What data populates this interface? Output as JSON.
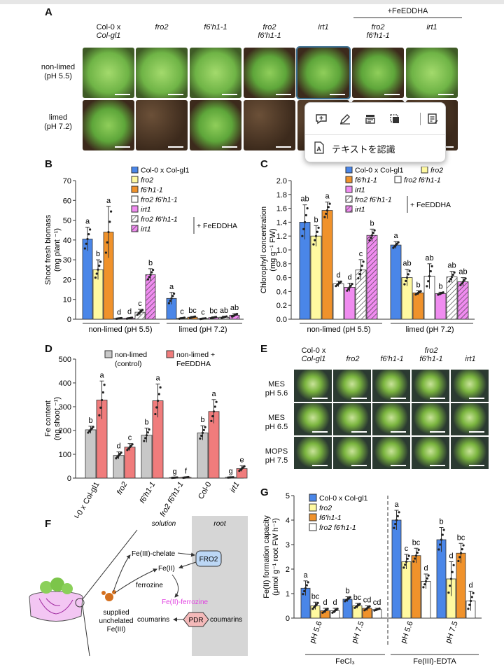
{
  "top_bar_color": "#e6e6e6",
  "panelA": {
    "letter": "A",
    "fe_header": "+FeEDDHA",
    "columns": [
      {
        "l1": "Col-0 x",
        "l2": "Col-gl1"
      },
      {
        "l1": "",
        "l2": "fro2"
      },
      {
        "l1": "",
        "l2": "f6′h1-1"
      },
      {
        "l1": "fro2",
        "l2": "f6′h1-1"
      },
      {
        "l1": "",
        "l2": "irt1"
      },
      {
        "l1": "fro2",
        "l2": "f6′h1-1"
      },
      {
        "l1": "",
        "l2": "irt1"
      }
    ],
    "rows": [
      {
        "l1": "non-limed",
        "l2": "(pH 5.5)"
      },
      {
        "l1": "limed",
        "l2": "(pH 7.2)"
      }
    ]
  },
  "context_menu": {
    "tools": [
      "add-comment-icon",
      "pen-icon",
      "highlighter-icon",
      "crop-icon",
      "text-note-icon"
    ],
    "recognize_text_label": "テキストを認識"
  },
  "panelB": {
    "letter": "B",
    "ylabel_1": "Shoot fresh biomass",
    "ylabel_2": "(mg plant ⁻¹)",
    "legend": [
      "Col-0 x Col-gl1",
      "fro2",
      "f6′h1-1",
      "fro2 f6′h1-1",
      "irt1",
      "fro2 f6′h1-1",
      "irt1"
    ],
    "fe_label": "+ FeEDDHA",
    "group_labels": [
      "non-limed (pH 5.5)",
      "limed (pH 7.2)"
    ]
  },
  "panelC": {
    "letter": "C",
    "ylabel_1": "Chlorophyll concentration",
    "ylabel_2": "(mg g⁻¹ FW)",
    "legend": [
      "Col-0 x Col-gl1",
      "fro2",
      "f6′h1-1",
      "fro2 f6′h1-1",
      "irt1",
      "fro2 f6′h1-1",
      "irt1"
    ],
    "fe_label": "+ FeEDDHA",
    "group_labels": [
      "non-limed (pH 5.5)",
      "limed (pH 7.2)"
    ]
  },
  "panelD": {
    "letter": "D",
    "ylabel_1": "Fe content",
    "ylabel_2": "(ng shoot ⁻¹)",
    "legend": [
      "non-limed",
      "(control)",
      "non-limed +",
      "FeEDDHA"
    ]
  },
  "panelE": {
    "letter": "E",
    "columns": [
      {
        "l1": "Col-0 x",
        "l2": "Col-gl1"
      },
      {
        "l1": "",
        "l2": "fro2"
      },
      {
        "l1": "",
        "l2": "f6′h1-1"
      },
      {
        "l1": "fro2",
        "l2": "f6′h1-1"
      },
      {
        "l1": "",
        "l2": "irt1"
      }
    ],
    "rows": [
      {
        "l1": "MES",
        "l2": "pH 5.6"
      },
      {
        "l1": "MES",
        "l2": "pH 6.5"
      },
      {
        "l1": "MOPS",
        "l2": "pH 7.5"
      }
    ]
  },
  "panelF": {
    "letter": "F",
    "solution": "solution",
    "root": "root",
    "fe3_chelate": "Fe(III)-chelate",
    "fro2": "FRO2",
    "fe2": "Fe(II)",
    "ferrozine": "ferrozine",
    "fe2_ferrozine": "Fe(II)-ferrozine",
    "supplied_1": "supplied",
    "supplied_2": "unchelated",
    "supplied_3": "Fe(III)",
    "coumarins_left": "coumarins",
    "pdr": "PDR",
    "coumarins_right": "coumarins",
    "ferrozine_color": "#e040e0"
  },
  "panelG": {
    "letter": "G",
    "ylabel_1": "Fe(II) formation capacity",
    "ylabel_2": "(μmol g⁻¹ root FW h⁻¹)",
    "legend": [
      "Col-0 x Col-gl1",
      "fro2",
      "f6′h1-1",
      "fro2 f6′h1-1"
    ],
    "footer_left": "FeCl₃",
    "footer_right": "Fe(III)-EDTA"
  },
  "colors": {
    "col0": "#4a86e8",
    "fro2": "#fff9a0",
    "f6h1": "#f0922b",
    "fro2f6h1": "#ffffff",
    "irt1": "#f08cf0",
    "grey": "#c8c8c8",
    "red": "#f07c7c"
  },
  "chart_data": [
    {
      "type": "bar",
      "panel": "B",
      "categories": [
        "non-limed (pH 5.5)",
        "limed (pH 7.2)"
      ],
      "ylim": [
        0,
        70
      ],
      "yticks": [
        0,
        10,
        20,
        30,
        40,
        50,
        60,
        70
      ],
      "series": [
        {
          "name": "Col-0 x Col-gl1",
          "values": [
            40.5,
            10.5
          ],
          "err": [
            6,
            3
          ],
          "letters": [
            "a",
            "a"
          ],
          "color": "#4a86e8",
          "hatch": false
        },
        {
          "name": "fro2",
          "values": [
            25,
            0.5
          ],
          "err": [
            5,
            0.3
          ],
          "letters": [
            "b",
            "c"
          ],
          "color": "#fff9a0",
          "hatch": false
        },
        {
          "name": "f6′h1-1",
          "values": [
            44,
            1
          ],
          "err": [
            13,
            0.4
          ],
          "letters": [
            "a",
            "bc"
          ],
          "color": "#f0922b",
          "hatch": false
        },
        {
          "name": "fro2 f6′h1-1",
          "values": [
            0.4,
            0.3
          ],
          "err": [
            0.2,
            0.2
          ],
          "letters": [
            "d",
            "c"
          ],
          "color": "#ffffff",
          "hatch": false
        },
        {
          "name": "irt1",
          "values": [
            0.5,
            0.8
          ],
          "err": [
            0.3,
            0.4
          ],
          "letters": [
            "d",
            "bc"
          ],
          "color": "#f08cf0",
          "hatch": false
        },
        {
          "name": "fro2 f6′h1-1",
          "values": [
            3.5,
            1
          ],
          "err": [
            1.5,
            0.5
          ],
          "letters": [
            "c",
            "ab"
          ],
          "color": "#ffffff",
          "hatch": true
        },
        {
          "name": "irt1",
          "values": [
            22.5,
            2
          ],
          "err": [
            3,
            0.8
          ],
          "letters": [
            "b",
            "ab"
          ],
          "color": "#f08cf0",
          "hatch": true
        }
      ]
    },
    {
      "type": "bar",
      "panel": "C",
      "categories": [
        "non-limed (pH 5.5)",
        "limed (pH 7.2)"
      ],
      "ylim": [
        0,
        2.0
      ],
      "yticks": [
        0,
        0.2,
        0.4,
        0.6,
        0.8,
        1.0,
        1.2,
        1.4,
        1.6,
        1.8,
        2.0
      ],
      "series": [
        {
          "name": "Col-0 x Col-gl1",
          "values": [
            1.4,
            1.07
          ],
          "err": [
            0.25,
            0.05
          ],
          "letters": [
            "ab",
            "a"
          ],
          "color": "#4a86e8",
          "hatch": false
        },
        {
          "name": "fro2",
          "values": [
            1.2,
            0.6
          ],
          "err": [
            0.15,
            0.12
          ],
          "letters": [
            "b",
            "ab"
          ],
          "color": "#fff9a0",
          "hatch": false
        },
        {
          "name": "f6′h1-1",
          "values": [
            1.57,
            0.38
          ],
          "err": [
            0.12,
            0.03
          ],
          "letters": [
            "a",
            "b"
          ],
          "color": "#f0922b",
          "hatch": false
        },
        {
          "name": "fro2 f6′h1-1",
          "values": [
            0.51,
            0.62
          ],
          "err": [
            0.04,
            0.18
          ],
          "letters": [
            "d",
            "ab"
          ],
          "color": "#ffffff",
          "hatch": false
        },
        {
          "name": "irt1",
          "values": [
            0.46,
            0.37
          ],
          "err": [
            0.06,
            0.02
          ],
          "letters": [
            "d",
            "b"
          ],
          "color": "#f08cf0",
          "hatch": false
        },
        {
          "name": "fro2 f6′h1-1",
          "values": [
            0.71,
            0.61
          ],
          "err": [
            0.15,
            0.08
          ],
          "letters": [
            "c",
            "ab"
          ],
          "color": "#ffffff",
          "hatch": true
        },
        {
          "name": "irt1",
          "values": [
            1.21,
            0.54
          ],
          "err": [
            0.09,
            0.06
          ],
          "letters": [
            "b",
            "ab"
          ],
          "color": "#f08cf0",
          "hatch": true
        }
      ]
    },
    {
      "type": "bar",
      "panel": "D",
      "categories": [
        "Col-0 x Col-gl1",
        "fro2",
        "f6′h1-1",
        "fro2 f6′h1-1",
        "Col-0",
        "irt1"
      ],
      "ylim": [
        0,
        500
      ],
      "yticks": [
        0,
        100,
        200,
        300,
        400,
        500
      ],
      "series": [
        {
          "name": "non-limed (control)",
          "values": [
            203,
            95,
            180,
            2,
            190,
            3
          ],
          "err": [
            15,
            15,
            30,
            1,
            30,
            1
          ],
          "letters": [
            "b",
            "d",
            "b",
            "g",
            "b",
            "g"
          ],
          "color": "#c8c8c8"
        },
        {
          "name": "non-limed + FeEDDHA",
          "values": [
            328,
            130,
            325,
            3,
            280,
            40
          ],
          "err": [
            80,
            15,
            70,
            2,
            50,
            12
          ],
          "letters": [
            "a",
            "c",
            "a",
            "f",
            "a",
            "e"
          ],
          "color": "#f07c7c"
        }
      ]
    },
    {
      "type": "bar",
      "panel": "G",
      "categories": [
        "pH 5.6",
        "pH 7.5",
        "pH 5.6",
        "pH 7.5"
      ],
      "ylim": [
        0,
        5
      ],
      "yticks": [
        0,
        1,
        2,
        3,
        4,
        5
      ],
      "series": [
        {
          "name": "Col-0 x Col-gl1",
          "values": [
            1.22,
            0.77,
            4.0,
            3.2
          ],
          "err": [
            0.3,
            0.1,
            0.4,
            0.5
          ],
          "letters": [
            "a",
            "b",
            "a",
            "b"
          ],
          "color": "#4a86e8"
        },
        {
          "name": "fro2",
          "values": [
            0.5,
            0.5,
            2.3,
            1.6
          ],
          "err": [
            0.15,
            0.1,
            0.3,
            0.7
          ],
          "letters": [
            "bc",
            "bc",
            "c",
            "d"
          ],
          "color": "#fff9a0"
        },
        {
          "name": "f6′h1-1",
          "values": [
            0.3,
            0.4,
            2.55,
            2.65
          ],
          "err": [
            0.1,
            0.1,
            0.3,
            0.4
          ],
          "letters": [
            "d",
            "cd",
            "bc",
            "bc"
          ],
          "color": "#f0922b"
        },
        {
          "name": "fro2 f6′h1-1",
          "values": [
            0.3,
            0.35,
            1.5,
            0.7
          ],
          "err": [
            0.1,
            0.05,
            0.3,
            0.4
          ],
          "letters": [
            "d",
            "cd",
            "d",
            "d"
          ],
          "color": "#ffffff"
        }
      ]
    }
  ]
}
